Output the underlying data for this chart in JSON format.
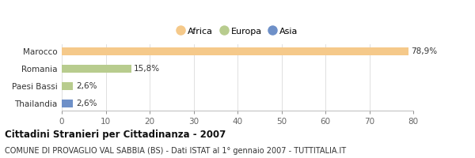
{
  "categories": [
    "Marocco",
    "Romania",
    "Paesi Bassi",
    "Thailandia"
  ],
  "values": [
    78.9,
    15.8,
    2.6,
    2.6
  ],
  "bar_colors": [
    "#f5c98a",
    "#b8cc8e",
    "#b8cc8e",
    "#6e90c8"
  ],
  "labels": [
    "78,9%",
    "15,8%",
    "2,6%",
    "2,6%"
  ],
  "legend_items": [
    {
      "label": "Africa",
      "color": "#f5c98a"
    },
    {
      "label": "Europa",
      "color": "#b8cc8e"
    },
    {
      "label": "Asia",
      "color": "#6e90c8"
    }
  ],
  "xlim": [
    0,
    80
  ],
  "xticks": [
    0,
    10,
    20,
    30,
    40,
    50,
    60,
    70,
    80
  ],
  "title": "Cittadini Stranieri per Cittadinanza - 2007",
  "subtitle": "COMUNE DI PROVAGLIO VAL SABBIA (BS) - Dati ISTAT al 1° gennaio 2007 - TUTTITALIA.IT",
  "background_color": "#ffffff",
  "title_fontsize": 8.5,
  "subtitle_fontsize": 7.0,
  "axis_fontsize": 7.5,
  "label_fontsize": 7.5,
  "ytick_fontsize": 7.5,
  "bar_height": 0.45
}
